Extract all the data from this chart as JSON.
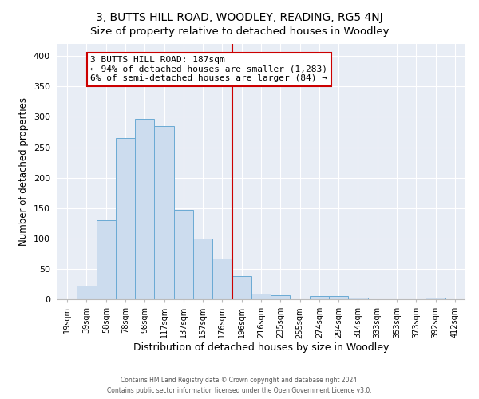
{
  "title": "3, BUTTS HILL ROAD, WOODLEY, READING, RG5 4NJ",
  "subtitle": "Size of property relative to detached houses in Woodley",
  "xlabel": "Distribution of detached houses by size in Woodley",
  "ylabel": "Number of detached properties",
  "bar_labels": [
    "19sqm",
    "39sqm",
    "58sqm",
    "78sqm",
    "98sqm",
    "117sqm",
    "137sqm",
    "157sqm",
    "176sqm",
    "196sqm",
    "216sqm",
    "235sqm",
    "255sqm",
    "274sqm",
    "294sqm",
    "314sqm",
    "333sqm",
    "353sqm",
    "373sqm",
    "392sqm",
    "412sqm"
  ],
  "bar_values": [
    0,
    22,
    130,
    265,
    297,
    285,
    147,
    100,
    67,
    38,
    9,
    6,
    0,
    5,
    5,
    3,
    0,
    0,
    0,
    2,
    0
  ],
  "bar_color": "#ccdcee",
  "bar_edge_color": "#6aaad4",
  "vline_x": 8.5,
  "vline_color": "#cc0000",
  "annotation_title": "3 BUTTS HILL ROAD: 187sqm",
  "annotation_line1": "← 94% of detached houses are smaller (1,283)",
  "annotation_line2": "6% of semi-detached houses are larger (84) →",
  "annotation_box_color": "#ffffff",
  "annotation_box_edgecolor": "#cc0000",
  "ylim": [
    0,
    420
  ],
  "yticks": [
    0,
    50,
    100,
    150,
    200,
    250,
    300,
    350,
    400
  ],
  "bg_color": "#ffffff",
  "plot_bg_color": "#e8edf5",
  "grid_color": "#ffffff",
  "footer1": "Contains HM Land Registry data © Crown copyright and database right 2024.",
  "footer2": "Contains public sector information licensed under the Open Government Licence v3.0.",
  "title_fontsize": 10,
  "subtitle_fontsize": 9.5
}
